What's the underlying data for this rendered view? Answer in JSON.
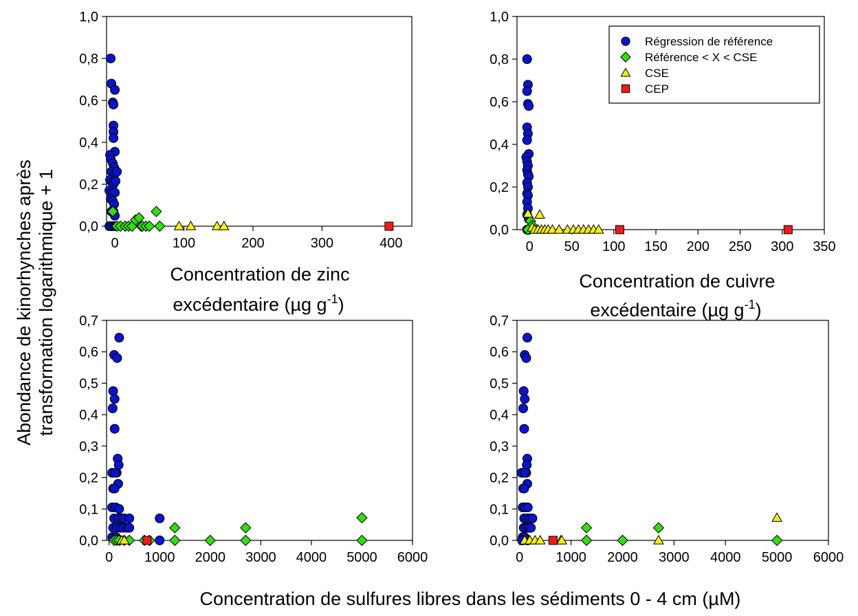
{
  "figure": {
    "y_label_line1": "Abondance de kinorhynches après",
    "y_label_line2": "transformation logarithmique + 1",
    "bottom_x_label": "Concentration de sulfures libres dans les sédiments 0 - 4 cm (µM)"
  },
  "legend": {
    "items": [
      {
        "key": "ref",
        "label": "Régression de référence",
        "color": "#0a14c8",
        "marker": "circle"
      },
      {
        "key": "mid",
        "label": "Référence < X < CSE",
        "color": "#33dd11",
        "marker": "diamond"
      },
      {
        "key": "cse",
        "label": "CSE",
        "color": "#f3ee1a",
        "marker": "triangle"
      },
      {
        "key": "cep",
        "label": "CEP",
        "color": "#ee1c1c",
        "marker": "square"
      }
    ]
  },
  "chart_data": [
    {
      "id": "zinc",
      "type": "scatter",
      "xlabel_line1": "Concentration de zinc",
      "xlabel_line2": "excédentaire (µg g",
      "xlabel_sup": "-1",
      "xlabel_end": ")",
      "xlim": [
        -12,
        430
      ],
      "ylim": [
        0,
        1.0
      ],
      "xticks": [
        0,
        100,
        200,
        300,
        400
      ],
      "yticks": [
        "0,0",
        "0,2",
        "0,4",
        "0,6",
        "0,8",
        "1,0"
      ],
      "ytick_values": [
        0,
        0.2,
        0.4,
        0.6,
        0.8,
        1.0
      ],
      "legend": false,
      "series": [
        {
          "key": "ref",
          "points": [
            [
              -6,
              0.8
            ],
            [
              -5,
              0.68
            ],
            [
              -3,
              0.59
            ],
            [
              -2,
              0.58
            ],
            [
              0,
              0.65
            ],
            [
              -2,
              0.48
            ],
            [
              -2,
              0.45
            ],
            [
              -2,
              0.42
            ],
            [
              0,
              0.355
            ],
            [
              -7,
              0.34
            ],
            [
              -6,
              0.32
            ],
            [
              -3,
              0.3
            ],
            [
              -1,
              0.28
            ],
            [
              -5,
              0.26
            ],
            [
              0,
              0.25
            ],
            [
              3,
              0.26
            ],
            [
              -7,
              0.22
            ],
            [
              -4,
              0.21
            ],
            [
              -2,
              0.2
            ],
            [
              1,
              0.215
            ],
            [
              -8,
              0.17
            ],
            [
              -3,
              0.16
            ],
            [
              0,
              0.16
            ],
            [
              -6,
              0.13
            ],
            [
              -3,
              0.12
            ],
            [
              -1,
              0.105
            ],
            [
              -5,
              0.07
            ],
            [
              -2,
              0.07
            ],
            [
              0,
              0.05
            ],
            [
              -8,
              0
            ],
            [
              -5,
              0
            ],
            [
              -2,
              0
            ],
            [
              0,
              0
            ],
            [
              2,
              0
            ]
          ]
        },
        {
          "key": "mid",
          "points": [
            [
              -3,
              0.07
            ],
            [
              3,
              0
            ],
            [
              8,
              0
            ],
            [
              15,
              0
            ],
            [
              20,
              0
            ],
            [
              25,
              0
            ],
            [
              30,
              0.03
            ],
            [
              35,
              0.04
            ],
            [
              38,
              0
            ],
            [
              40,
              0
            ],
            [
              45,
              0
            ],
            [
              50,
              0
            ],
            [
              60,
              0.07
            ],
            [
              65,
              0
            ]
          ]
        },
        {
          "key": "cse",
          "points": [
            [
              93,
              0
            ],
            [
              110,
              0
            ],
            [
              148,
              0
            ],
            [
              158,
              0
            ]
          ]
        },
        {
          "key": "cep",
          "points": [
            [
              397,
              0
            ]
          ]
        }
      ]
    },
    {
      "id": "cuivre",
      "type": "scatter",
      "xlabel_line1": "Concentration de cuivre",
      "xlabel_line2": "excédentaire (µg g",
      "xlabel_sup": "-1",
      "xlabel_end": ")",
      "xlim": [
        -15,
        350
      ],
      "ylim": [
        0,
        1.0
      ],
      "xticks": [
        0,
        50,
        100,
        150,
        200,
        250,
        300,
        350
      ],
      "yticks": [
        "0,0",
        "0,2",
        "0,4",
        "0,6",
        "0,8",
        "1,0"
      ],
      "ytick_values": [
        0,
        0.2,
        0.4,
        0.6,
        0.8,
        1.0
      ],
      "legend": true,
      "series": [
        {
          "key": "ref",
          "points": [
            [
              -3,
              0.8
            ],
            [
              -2,
              0.68
            ],
            [
              -3,
              0.65
            ],
            [
              -2,
              0.59
            ],
            [
              -1,
              0.58
            ],
            [
              -3,
              0.48
            ],
            [
              -2,
              0.45
            ],
            [
              -3,
              0.42
            ],
            [
              -1,
              0.355
            ],
            [
              -4,
              0.34
            ],
            [
              -3,
              0.32
            ],
            [
              -2,
              0.3
            ],
            [
              -3,
              0.28
            ],
            [
              -2,
              0.26
            ],
            [
              -1,
              0.25
            ],
            [
              -3,
              0.22
            ],
            [
              -2,
              0.2
            ],
            [
              -3,
              0.17
            ],
            [
              -2,
              0.16
            ],
            [
              -3,
              0.13
            ],
            [
              -2,
              0.1
            ],
            [
              -3,
              0.07
            ],
            [
              -1,
              0.05
            ],
            [
              -3,
              0
            ],
            [
              -1,
              0
            ]
          ]
        },
        {
          "key": "mid",
          "points": [
            [
              1,
              0.04
            ],
            [
              3,
              0.02
            ],
            [
              -2,
              0
            ]
          ]
        },
        {
          "key": "cse",
          "points": [
            [
              -2,
              0.075
            ],
            [
              12,
              0.07
            ],
            [
              3,
              0.01
            ],
            [
              6,
              0
            ],
            [
              10,
              0
            ],
            [
              14,
              0
            ],
            [
              18,
              0
            ],
            [
              22,
              0
            ],
            [
              27,
              0
            ],
            [
              35,
              0
            ],
            [
              45,
              0
            ],
            [
              52,
              0
            ],
            [
              58,
              0
            ],
            [
              64,
              0
            ],
            [
              70,
              0
            ],
            [
              76,
              0
            ],
            [
              82,
              0
            ]
          ]
        },
        {
          "key": "cep",
          "points": [
            [
              107,
              0
            ],
            [
              307,
              0
            ]
          ]
        }
      ]
    },
    {
      "id": "sulfures-1",
      "type": "scatter",
      "xlim": [
        -50,
        6000
      ],
      "ylim": [
        0,
        0.7
      ],
      "xticks": [
        0,
        1000,
        2000,
        3000,
        4000,
        5000,
        6000
      ],
      "yticks": [
        "0,0",
        "0,1",
        "0,2",
        "0,3",
        "0,4",
        "0,5",
        "0,6",
        "0,7"
      ],
      "ytick_values": [
        0,
        0.1,
        0.2,
        0.3,
        0.4,
        0.5,
        0.6,
        0.7
      ],
      "legend": false,
      "series": [
        {
          "key": "ref",
          "points": [
            [
              200,
              0.645
            ],
            [
              100,
              0.59
            ],
            [
              160,
              0.58
            ],
            [
              80,
              0.475
            ],
            [
              110,
              0.45
            ],
            [
              70,
              0.42
            ],
            [
              110,
              0.355
            ],
            [
              170,
              0.26
            ],
            [
              190,
              0.24
            ],
            [
              150,
              0.215
            ],
            [
              60,
              0.215
            ],
            [
              120,
              0.215
            ],
            [
              180,
              0.18
            ],
            [
              80,
              0.165
            ],
            [
              110,
              0.165
            ],
            [
              60,
              0.105
            ],
            [
              130,
              0.105
            ],
            [
              200,
              0.1
            ],
            [
              100,
              0.07
            ],
            [
              180,
              0.07
            ],
            [
              250,
              0.07
            ],
            [
              300,
              0.07
            ],
            [
              400,
              0.07
            ],
            [
              1000,
              0.07
            ],
            [
              80,
              0.04
            ],
            [
              150,
              0.04
            ],
            [
              220,
              0.04
            ],
            [
              280,
              0.04
            ],
            [
              350,
              0.04
            ],
            [
              400,
              0.04
            ],
            [
              60,
              0.01
            ],
            [
              140,
              0.01
            ],
            [
              200,
              0
            ],
            [
              1000,
              0
            ]
          ]
        },
        {
          "key": "mid",
          "points": [
            [
              100,
              0
            ],
            [
              150,
              0
            ],
            [
              200,
              0
            ],
            [
              300,
              0
            ],
            [
              400,
              0
            ],
            [
              700,
              0
            ],
            [
              800,
              0
            ],
            [
              1300,
              0.04
            ],
            [
              1300,
              0
            ],
            [
              2000,
              0
            ],
            [
              2700,
              0.04
            ],
            [
              2700,
              0
            ],
            [
              5000,
              0.072
            ],
            [
              5000,
              0
            ]
          ]
        },
        {
          "key": "cse",
          "points": [
            [
              250,
              0
            ],
            [
              300,
              0
            ]
          ]
        },
        {
          "key": "cep",
          "points": [
            [
              750,
              0
            ]
          ]
        }
      ]
    },
    {
      "id": "sulfures-2",
      "type": "scatter",
      "xlim": [
        -50,
        6000
      ],
      "ylim": [
        0,
        0.7
      ],
      "xticks": [
        0,
        1000,
        2000,
        3000,
        4000,
        5000,
        6000
      ],
      "yticks": [
        "0,0",
        "0,1",
        "0,2",
        "0,3",
        "0,4",
        "0,5",
        "0,6",
        "0,7"
      ],
      "ytick_values": [
        0,
        0.1,
        0.2,
        0.3,
        0.4,
        0.5,
        0.6,
        0.7
      ],
      "legend": false,
      "series": [
        {
          "key": "ref",
          "points": [
            [
              150,
              0.645
            ],
            [
              100,
              0.59
            ],
            [
              130,
              0.58
            ],
            [
              80,
              0.475
            ],
            [
              100,
              0.45
            ],
            [
              70,
              0.42
            ],
            [
              90,
              0.355
            ],
            [
              150,
              0.26
            ],
            [
              140,
              0.24
            ],
            [
              130,
              0.215
            ],
            [
              40,
              0.215
            ],
            [
              100,
              0.215
            ],
            [
              150,
              0.18
            ],
            [
              70,
              0.165
            ],
            [
              90,
              0.165
            ],
            [
              60,
              0.105
            ],
            [
              110,
              0.105
            ],
            [
              160,
              0.105
            ],
            [
              90,
              0.07
            ],
            [
              150,
              0.07
            ],
            [
              200,
              0.07
            ],
            [
              250,
              0.07
            ],
            [
              80,
              0.04
            ],
            [
              130,
              0.04
            ],
            [
              180,
              0.04
            ],
            [
              220,
              0.04
            ],
            [
              60,
              0.01
            ],
            [
              100,
              0.01
            ],
            [
              50,
              0
            ],
            [
              150,
              0
            ]
          ]
        },
        {
          "key": "mid",
          "points": [
            [
              1300,
              0.04
            ],
            [
              1300,
              0
            ],
            [
              2000,
              0
            ],
            [
              2700,
              0.04
            ],
            [
              5000,
              0
            ]
          ]
        },
        {
          "key": "cse",
          "points": [
            [
              100,
              0
            ],
            [
              200,
              0
            ],
            [
              300,
              0
            ],
            [
              400,
              0
            ],
            [
              800,
              0
            ],
            [
              820,
              0
            ],
            [
              2700,
              0
            ],
            [
              5000,
              0.072
            ]
          ]
        },
        {
          "key": "cep",
          "points": [
            [
              650,
              0
            ]
          ]
        }
      ]
    }
  ]
}
